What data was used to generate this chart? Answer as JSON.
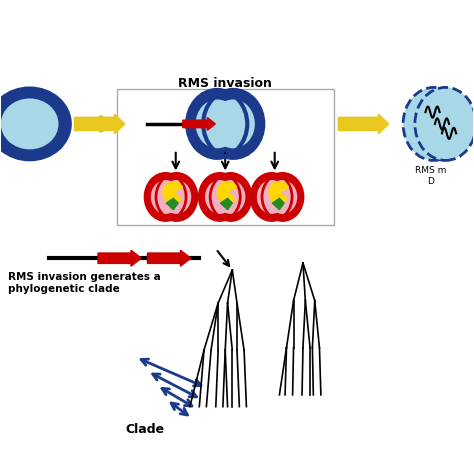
{
  "bg_color": "#f0f0f0",
  "title": "RMS invasion",
  "text_label1": "RMS invasion generates a\nphylogenetic clade",
  "text_rms": "RMS m...\nD...",
  "clade_label": "Clade",
  "arrow_color_yellow": "#FFD700",
  "arrow_color_red": "#CC0000",
  "arrow_color_blue": "#1B3A8C",
  "cell_outer_color": "#CC0000",
  "cell_inner_color": "#F0B0C0",
  "big_cell_outer": "#1B3A8C",
  "big_cell_inner": "#A8D8E8",
  "fig_width": 4.74,
  "fig_height": 4.74,
  "dpi": 100
}
